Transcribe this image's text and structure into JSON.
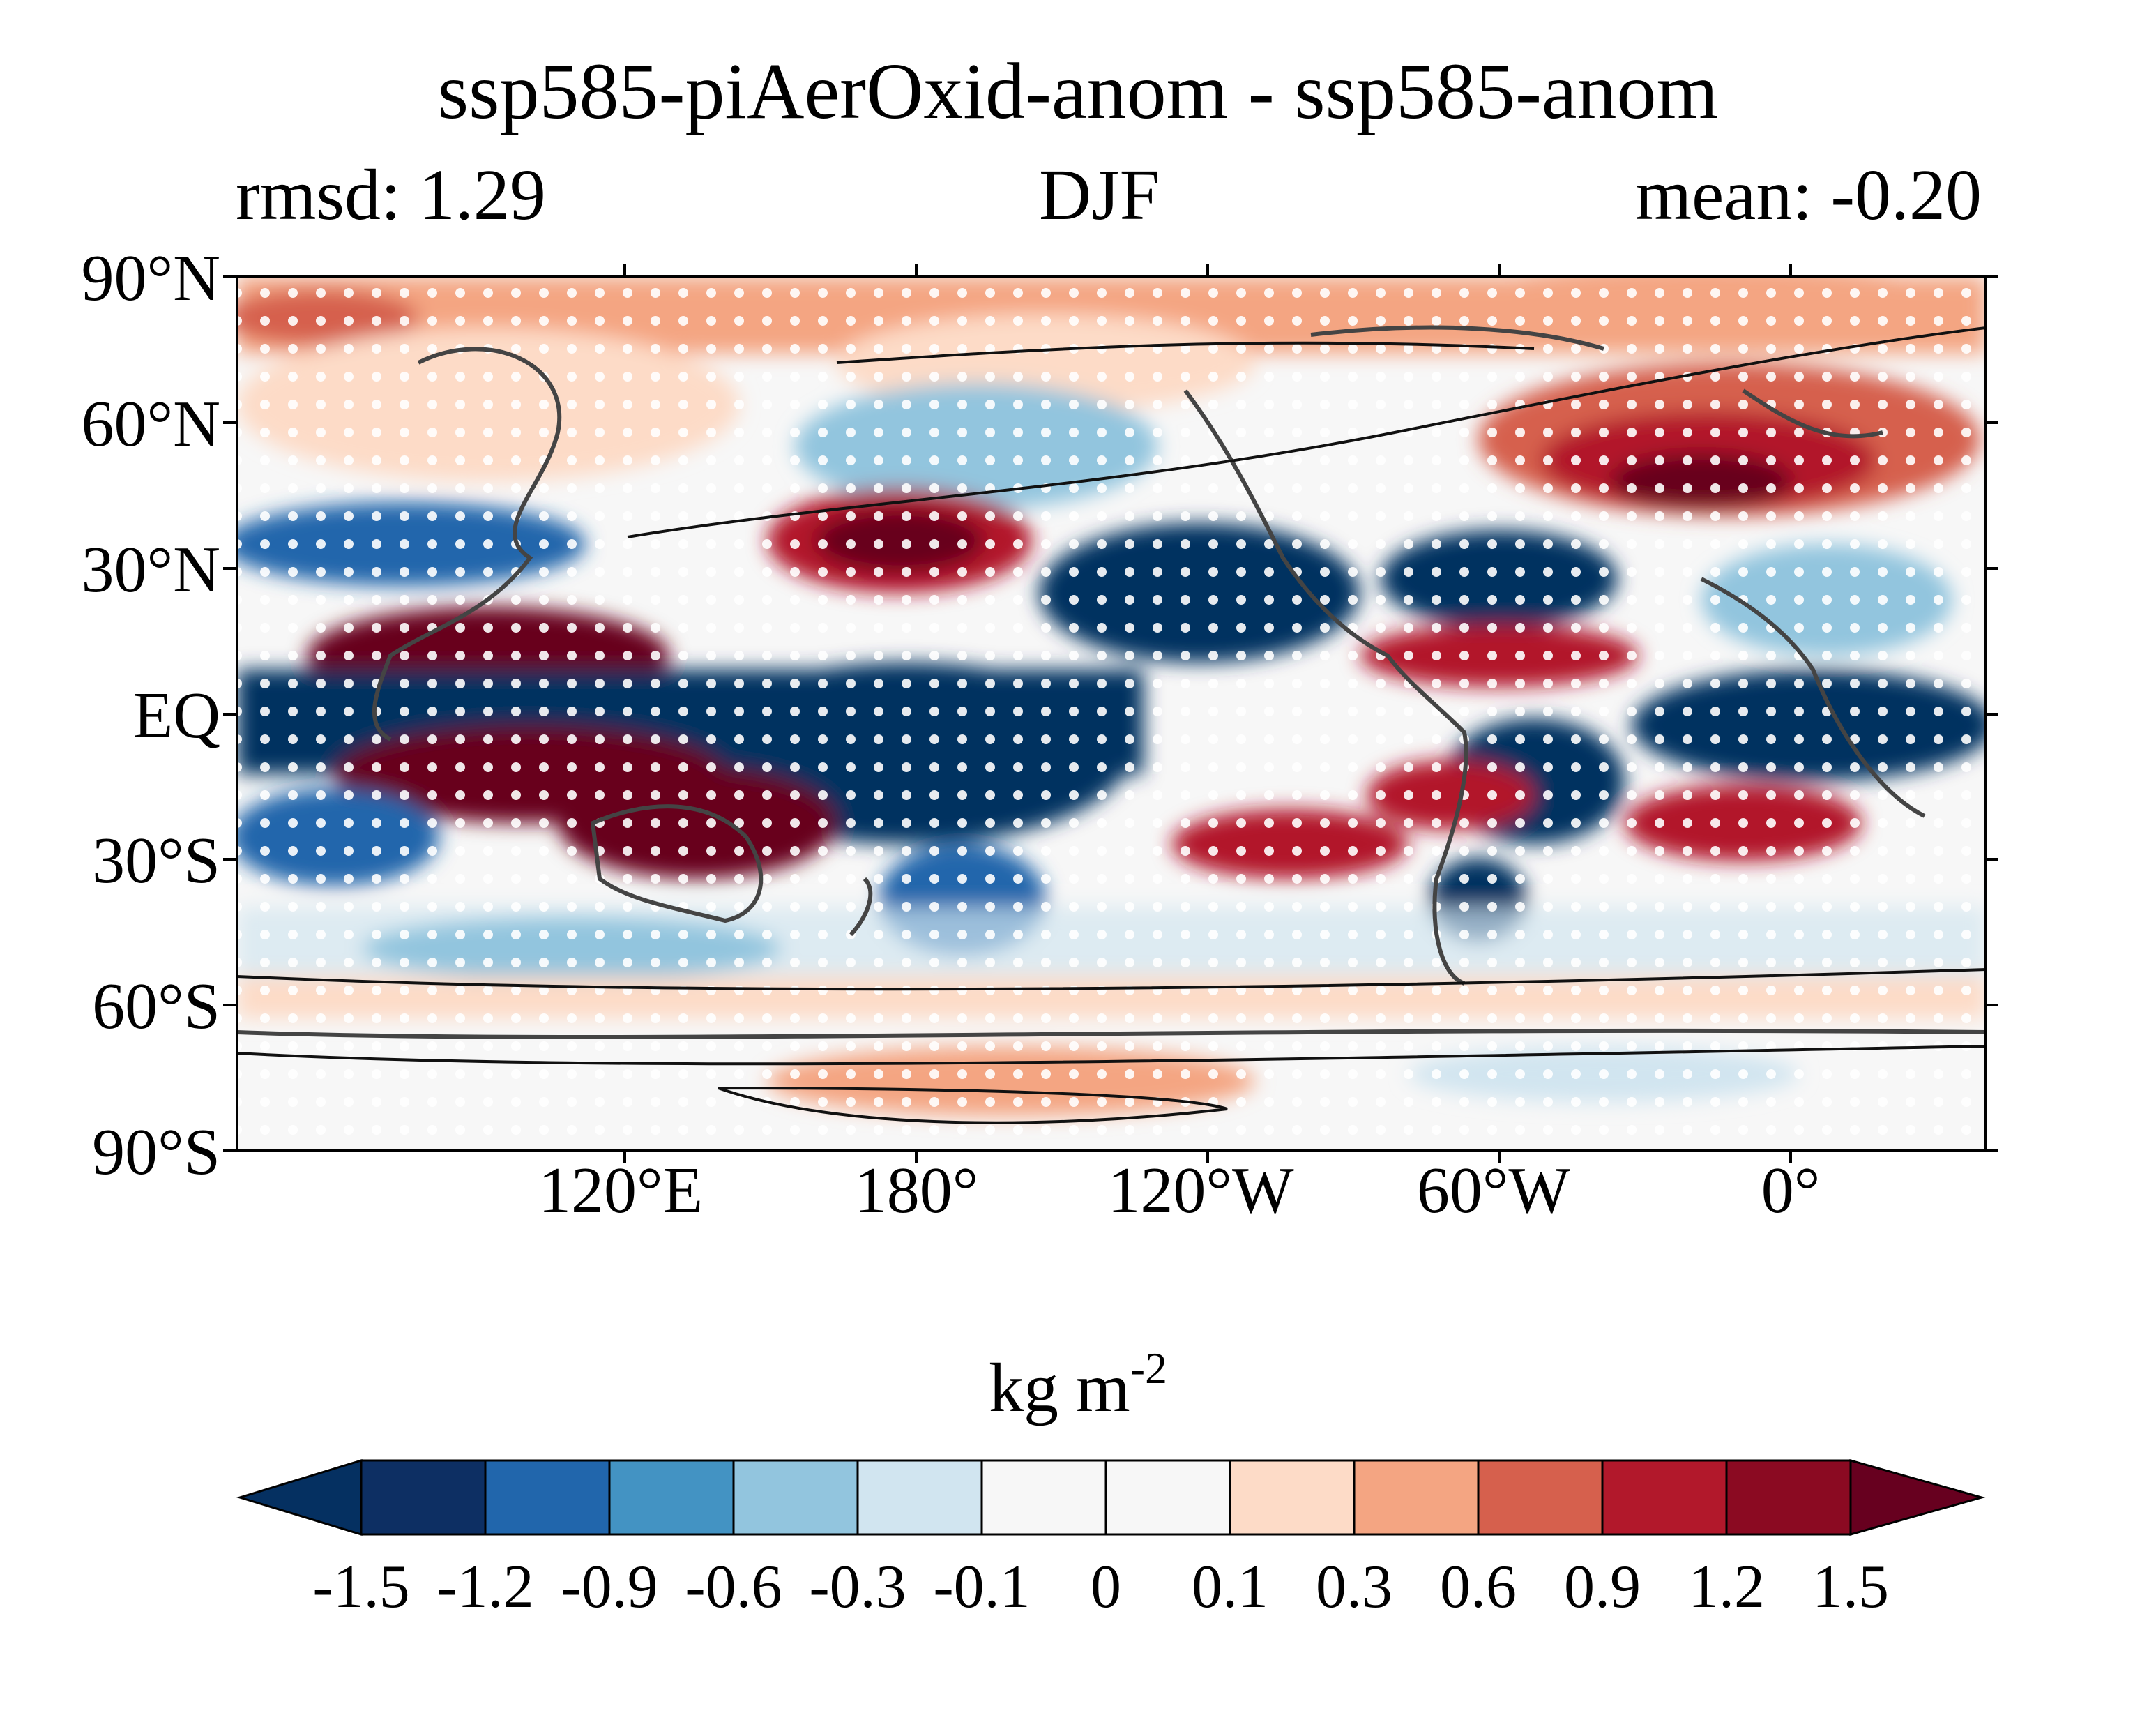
{
  "title": "ssp585-piAerOxid-anom - ssp585-anom",
  "subtitle_left": "rmsd: 1.29",
  "subtitle_center": "DJF",
  "subtitle_right": "mean: -0.20",
  "lat_labels": [
    "90°N",
    "60°N",
    "30°N",
    "EQ",
    "30°S",
    "60°S",
    "90°S"
  ],
  "lon_labels": [
    "120°E",
    "180°",
    "120°W",
    "60°W",
    "0°"
  ],
  "units_base": "kg m",
  "units_exp": "-2",
  "colorbar": {
    "ticks": [
      "-1.5",
      "-1.2",
      "-0.9",
      "-0.6",
      "-0.3",
      "-0.1",
      "0",
      "0.1",
      "0.3",
      "0.6",
      "0.9",
      "1.2",
      "1.5"
    ],
    "colors": [
      "#053061",
      "#0d2f63",
      "#2166ac",
      "#4393c3",
      "#92c5de",
      "#d1e5f0",
      "#f7f7f7",
      "#f7f7f7",
      "#fddbc7",
      "#f4a582",
      "#d6604d",
      "#b2182b",
      "#8b0a22",
      "#67001f"
    ]
  },
  "map": {
    "projection": "equirectangular",
    "central_longitude_east": 170,
    "lon_range": [
      -10,
      350
    ],
    "lat_range": [
      -90,
      90
    ]
  }
}
